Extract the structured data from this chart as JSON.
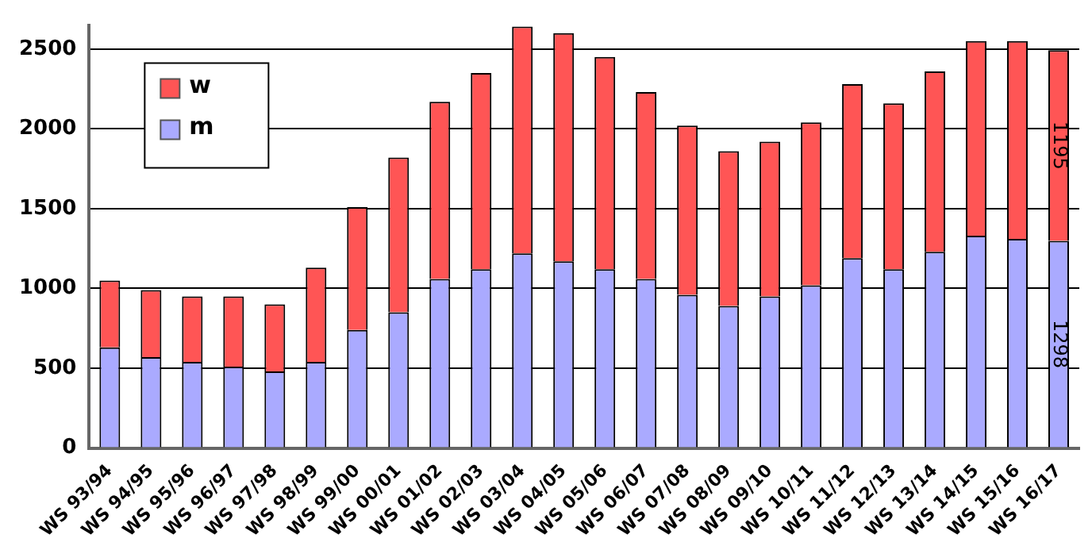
{
  "chart_data": {
    "type": "bar",
    "stacked": true,
    "categories": [
      "WS 93/94",
      "WS 94/95",
      "WS 95/96",
      "WS 96/97",
      "WS 97/98",
      "WS 98/99",
      "WS 99/00",
      "WS 00/01",
      "WS 01/02",
      "WS 02/03",
      "WS 03/04",
      "WS 04/05",
      "WS 05/06",
      "WS 06/07",
      "WS 07/08",
      "WS 08/09",
      "WS 09/10",
      "WS 10/11",
      "WS 11/12",
      "WS 12/13",
      "WS 13/14",
      "WS 14/15",
      "WS 15/16",
      "WS 16/17"
    ],
    "series": [
      {
        "name": "m",
        "color": "#aaaaff",
        "values": [
          630,
          570,
          540,
          510,
          480,
          540,
          740,
          850,
          1060,
          1120,
          1220,
          1170,
          1120,
          1060,
          960,
          890,
          950,
          1020,
          1190,
          1120,
          1230,
          1330,
          1310,
          1298
        ],
        "value_labels": [
          null,
          null,
          null,
          null,
          null,
          null,
          null,
          null,
          null,
          null,
          null,
          null,
          null,
          null,
          null,
          null,
          null,
          null,
          null,
          null,
          null,
          null,
          null,
          "1298"
        ]
      },
      {
        "name": "w",
        "color": "#ff5555",
        "values": [
          420,
          420,
          410,
          440,
          420,
          590,
          770,
          970,
          1110,
          1230,
          1420,
          1430,
          1330,
          1170,
          1060,
          970,
          970,
          1020,
          1090,
          1040,
          1130,
          1220,
          1240,
          1195
        ],
        "value_labels": [
          null,
          null,
          null,
          null,
          null,
          null,
          null,
          null,
          null,
          null,
          null,
          null,
          null,
          null,
          null,
          null,
          null,
          null,
          null,
          null,
          null,
          null,
          null,
          "1195"
        ]
      }
    ],
    "ylim": [
      0,
      2650
    ],
    "yticks": [
      0,
      500,
      1000,
      1500,
      2000,
      2500
    ],
    "grid": "y",
    "legend": "top left"
  }
}
